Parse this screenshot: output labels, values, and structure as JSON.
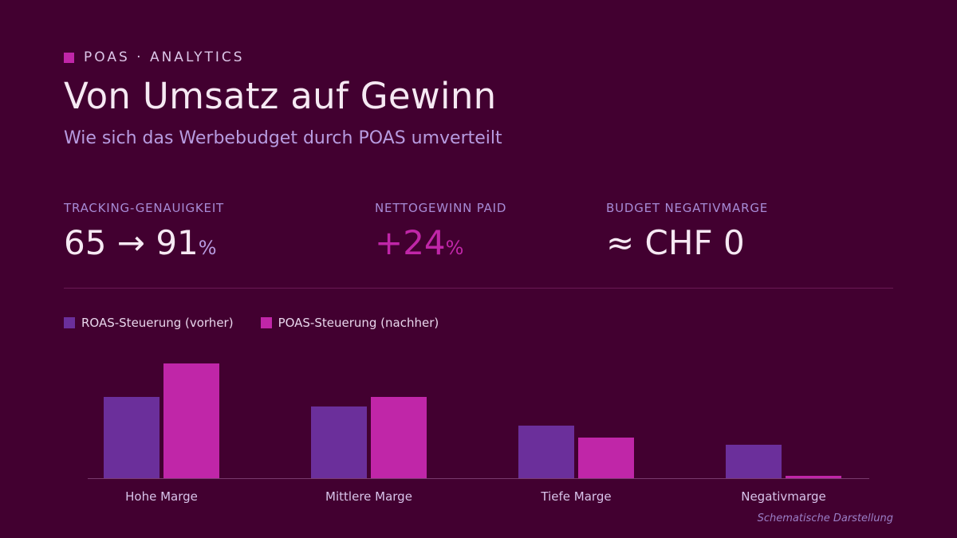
{
  "header": {
    "eyebrow": "POAS · ANALYTICS",
    "title": "Von Umsatz auf Gewinn",
    "subtitle": "Wie sich das Werbebudget durch POAS umverteilt"
  },
  "kpis": [
    {
      "label": "TRACKING-GENAUIGKEIT",
      "value": "65 → 91",
      "unit": "%"
    },
    {
      "label": "NETTOGEWINN PAID",
      "value": "+24",
      "unit": "%"
    },
    {
      "label": "BUDGET NEGATIVMARGE",
      "value": "≈ CHF 0",
      "unit": ""
    }
  ],
  "colors": {
    "background": "#420030",
    "roas": "#6b2f9b",
    "poas": "#c026a8",
    "axis": "#7a3a6e"
  },
  "footnote": "Schematische Darstellung",
  "chart_data": {
    "type": "bar",
    "categories": [
      "Hohe Marge",
      "Mittlere Marge",
      "Tiefe Marge",
      "Negativmarge"
    ],
    "series": [
      {
        "name": "ROAS-Steuerung (vorher)",
        "values": [
          34,
          30,
          22,
          14
        ]
      },
      {
        "name": "POAS-Steuerung (nachher)",
        "values": [
          48,
          34,
          17,
          1
        ]
      }
    ],
    "ylim": [
      0,
      50
    ],
    "legend": "top-left",
    "grid": false
  }
}
